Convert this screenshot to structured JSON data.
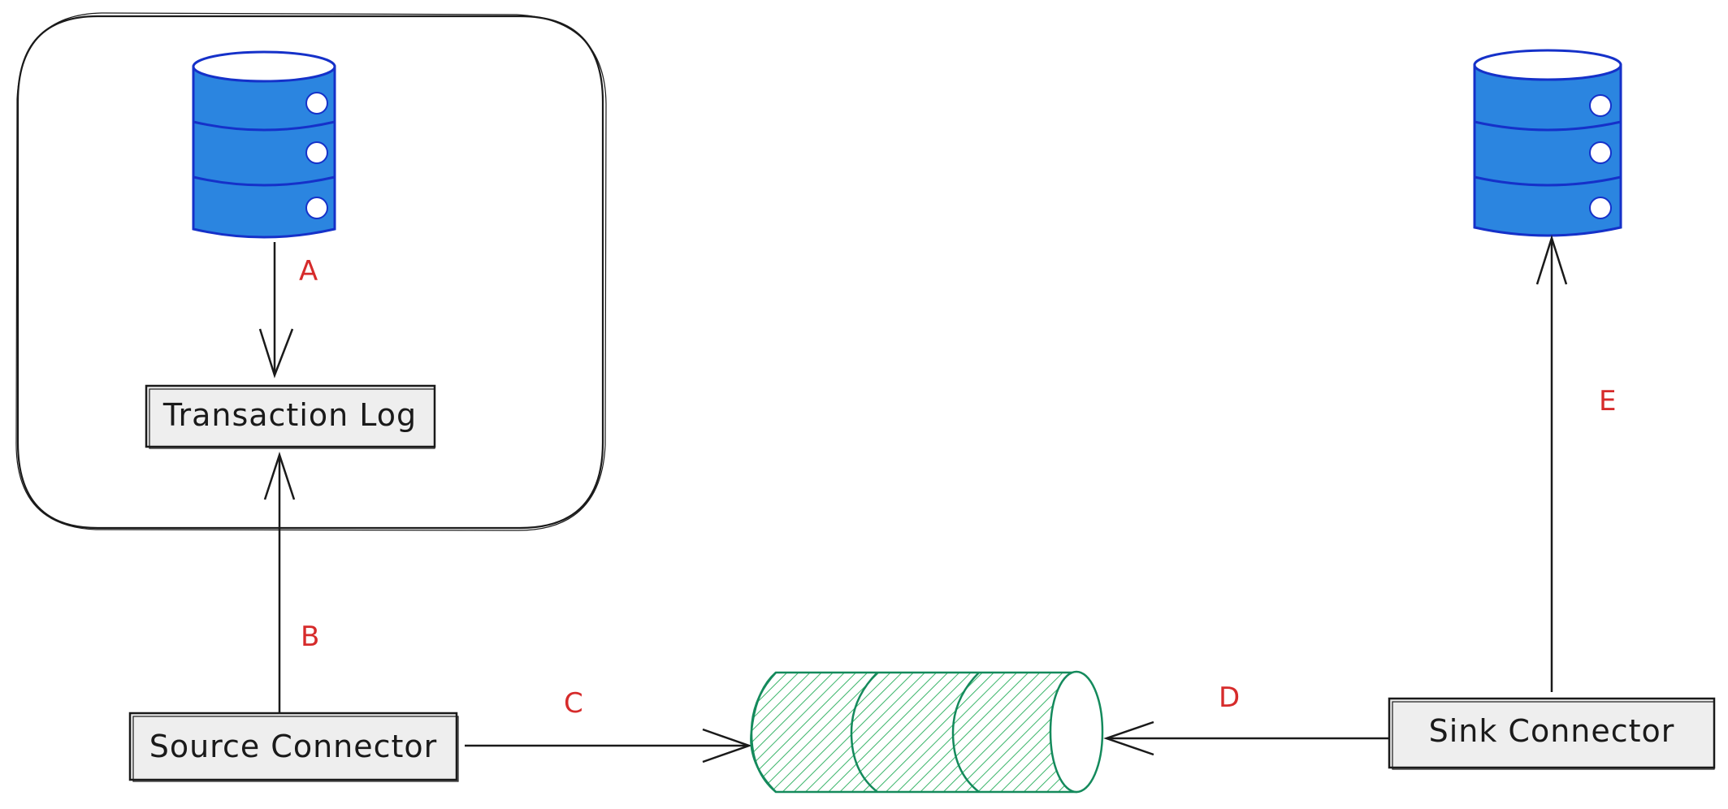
{
  "nodes": {
    "transaction_log": "Transaction Log",
    "source_connector": "Source Connector",
    "sink_connector": "Sink Connector"
  },
  "steps": {
    "a": "A",
    "b": "B",
    "c": "C",
    "d": "D",
    "e": "E"
  },
  "colors": {
    "database_fill": "#2b85e0",
    "database_stroke": "#1531c9",
    "topic_stroke": "#148a5c",
    "topic_hatch": "#3ab56a",
    "step_label": "#d62b2b",
    "box_fill": "#eeeeee",
    "stroke": "#1a1a1a"
  },
  "icons": {
    "source_database": "database-icon",
    "sink_database": "database-icon",
    "topic": "topic-cylinder-icon"
  }
}
